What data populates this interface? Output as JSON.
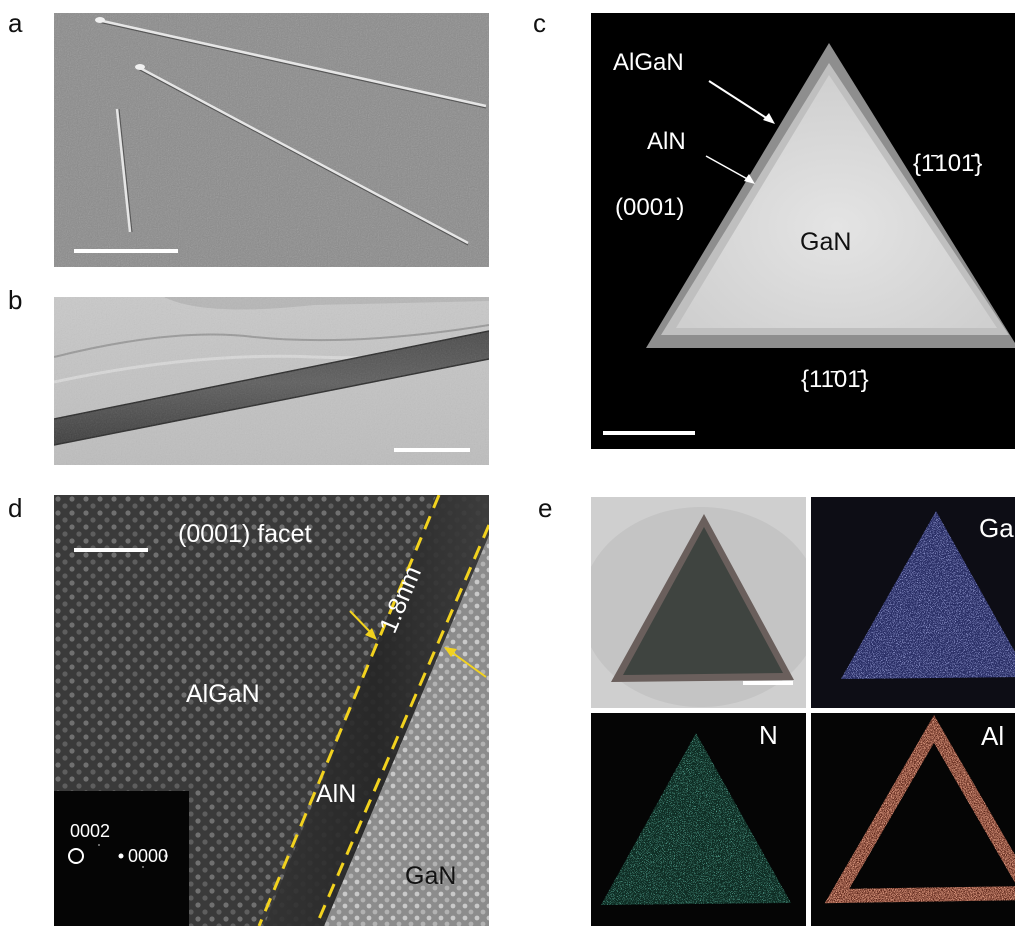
{
  "panels": {
    "a": {
      "label": "a"
    },
    "b": {
      "label": "b"
    },
    "c": {
      "label": "c",
      "annotations": {
        "shell": "AlGaN",
        "interlayer": "AlN",
        "core": "GaN",
        "facet_left": "(0001)",
        "facet_right": "{1̄101̄}",
        "facet_bottom": "{11̄01̄}"
      }
    },
    "d": {
      "label": "d",
      "facet": "(0001) facet",
      "thickness": "1.8nm",
      "region_shell": "AlGaN",
      "region_interlayer": "AlN",
      "region_core": "GaN",
      "fft_spot": "0002",
      "fft_center": "0000"
    },
    "e": {
      "label": "e",
      "maps": {
        "ga": "Ga",
        "n": "N",
        "al": "Al"
      }
    }
  },
  "colors": {
    "annotation_yellow": "#f2d21e",
    "ga_map": "#6f78d8",
    "n_map": "#2fb58f",
    "al_map": "#c85a3c"
  }
}
